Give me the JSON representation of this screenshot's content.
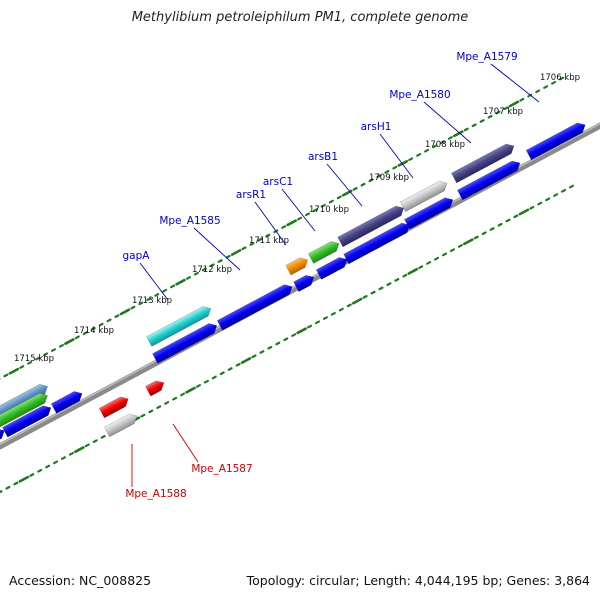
{
  "title": "Methylibium petroleiphilum PM1, complete genome",
  "footer": {
    "accession": "Accession: NC_008825",
    "summary": "Topology: circular; Length: 4,044,195 bp; Genes: 3,864"
  },
  "colors": {
    "forward_label": "#0000cc",
    "reverse_label": "#cc0000",
    "backbone": "#8a8a8a",
    "tick": "#1f7a1f"
  },
  "ticks": [
    {
      "label": "1706 kbp"
    },
    {
      "label": "1707 kbp"
    },
    {
      "label": "1708 kbp"
    },
    {
      "label": "1709 kbp"
    },
    {
      "label": "1710 kbp"
    },
    {
      "label": "1711 kbp"
    },
    {
      "label": "1712 kbp"
    },
    {
      "label": "1713 kbp"
    },
    {
      "label": "1714 kbp"
    },
    {
      "label": "1715 kbp"
    }
  ],
  "forward_labels": [
    {
      "name": "Mpe_A1579"
    },
    {
      "name": "Mpe_A1580"
    },
    {
      "name": "arsH1"
    },
    {
      "name": "arsB1"
    },
    {
      "name": "arsC1"
    },
    {
      "name": "arsR1"
    },
    {
      "name": "Mpe_A1585"
    },
    {
      "name": "gapA"
    }
  ],
  "reverse_labels": [
    {
      "name": "Mpe_A1587"
    },
    {
      "name": "Mpe_A1588"
    }
  ]
}
